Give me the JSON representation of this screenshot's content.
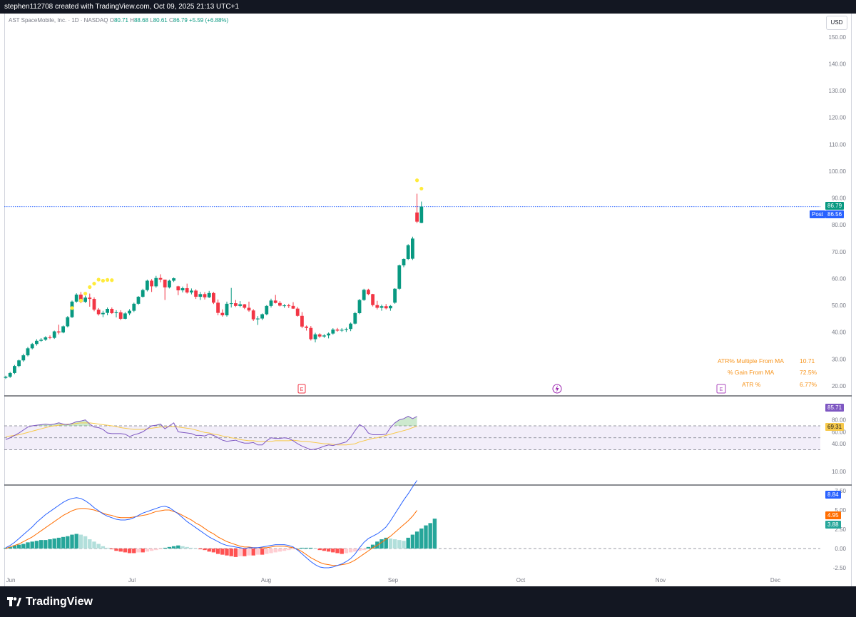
{
  "header": {
    "creator_text": "stephen112708 created with TradingView.com, Oct 09, 2025 21:13 UTC+1"
  },
  "symbol": {
    "name": "AST SpaceMobile, Inc. · 1D · NASDAQ",
    "open_label": "O",
    "open": "80.71",
    "high_label": "H",
    "high": "88.68",
    "low_label": "L",
    "low": "80.61",
    "close_label": "C",
    "close": "86.79",
    "change": "+5.59 (+6.88%)"
  },
  "currency": "USD",
  "price_tags": {
    "last": "86.79",
    "post_label": "Post",
    "post": "86.56",
    "rsi": "85.71",
    "rsi_ma": "69.31",
    "macd": "8.84",
    "signal": "4.95",
    "hist": "3.88"
  },
  "stats": [
    {
      "label": "ATR% Multiple From MA",
      "value": "10.71"
    },
    {
      "label": "% Gain From MA",
      "value": "72.5%"
    },
    {
      "label": "ATR %",
      "value": "6.77%"
    }
  ],
  "event_markers": {
    "earnings": "E",
    "dividend": "E"
  },
  "footer": {
    "brand": "TradingView"
  },
  "colors": {
    "up": "#089981",
    "down": "#f23645",
    "rsi": "#7e57c2",
    "rsi_ma": "#f7c94a",
    "macd": "#2962ff",
    "signal": "#ff6d00",
    "dots": "#ffeb3b",
    "last_price": "#2962ff"
  },
  "chart_data": [
    {
      "type": "candlestick",
      "title": "",
      "x_axis_labels": [
        "Jun",
        "Jul",
        "Aug",
        "Sep",
        "Oct",
        "Nov",
        "Dec"
      ],
      "y_axis_ticks": [
        20,
        30,
        40,
        50,
        60,
        70,
        80,
        90,
        100,
        110,
        120,
        130,
        140,
        150
      ],
      "ylim": [
        17,
        158
      ],
      "ohlc": [
        [
          23.0,
          23.8,
          22.6,
          23.4
        ],
        [
          23.4,
          25.2,
          23.0,
          24.8
        ],
        [
          24.8,
          27.8,
          24.4,
          27.4
        ],
        [
          27.4,
          29.8,
          26.9,
          29.5
        ],
        [
          29.5,
          32.0,
          29.0,
          31.4
        ],
        [
          31.4,
          34.5,
          31.0,
          34.0
        ],
        [
          34.0,
          36.0,
          33.6,
          35.6
        ],
        [
          35.6,
          37.4,
          35.0,
          36.8
        ],
        [
          36.8,
          37.8,
          36.4,
          37.2
        ],
        [
          37.2,
          38.5,
          36.8,
          38.1
        ],
        [
          38.1,
          38.8,
          37.4,
          37.9
        ],
        [
          37.9,
          40.6,
          37.5,
          40.3
        ],
        [
          40.3,
          42.8,
          39.2,
          39.9
        ],
        [
          39.9,
          42.5,
          39.6,
          42.2
        ],
        [
          42.2,
          46.0,
          41.8,
          45.6
        ],
        [
          45.6,
          51.8,
          45.3,
          51.4
        ],
        [
          51.4,
          54.5,
          51.0,
          54.0
        ],
        [
          54.0,
          55.0,
          50.8,
          51.3
        ],
        [
          51.3,
          53.6,
          50.9,
          52.9
        ],
        [
          52.9,
          54.4,
          49.5,
          52.4
        ],
        [
          52.4,
          53.0,
          47.8,
          48.4
        ],
        [
          48.4,
          49.0,
          46.2,
          46.7
        ],
        [
          46.7,
          48.0,
          45.6,
          47.2
        ],
        [
          47.2,
          49.2,
          46.3,
          48.7
        ],
        [
          48.7,
          49.2,
          46.8,
          47.1
        ],
        [
          47.1,
          48.2,
          45.5,
          47.4
        ],
        [
          47.4,
          48.2,
          44.5,
          45.0
        ],
        [
          45.0,
          47.5,
          44.8,
          47.0
        ],
        [
          47.0,
          48.6,
          46.3,
          48.0
        ],
        [
          48.0,
          51.0,
          47.5,
          50.6
        ],
        [
          50.6,
          53.5,
          50.2,
          53.2
        ],
        [
          53.2,
          56.2,
          52.9,
          55.7
        ],
        [
          55.7,
          59.6,
          55.2,
          59.2
        ],
        [
          59.2,
          59.8,
          55.0,
          57.1
        ],
        [
          57.1,
          61.0,
          56.6,
          60.2
        ],
        [
          60.2,
          61.6,
          58.6,
          59.6
        ],
        [
          59.6,
          59.6,
          52.0,
          56.7
        ],
        [
          56.7,
          59.6,
          56.3,
          59.2
        ],
        [
          59.2,
          60.4,
          58.7,
          60.1
        ],
        [
          57.1,
          57.3,
          53.8,
          55.6
        ],
        [
          55.6,
          57.0,
          54.8,
          56.4
        ],
        [
          56.4,
          58.1,
          54.4,
          54.8
        ],
        [
          54.8,
          56.3,
          54.1,
          55.5
        ],
        [
          55.5,
          56.0,
          52.4,
          53.2
        ],
        [
          53.2,
          55.0,
          52.0,
          54.2
        ],
        [
          54.2,
          54.9,
          52.2,
          53.0
        ],
        [
          53.0,
          55.4,
          52.7,
          54.6
        ],
        [
          54.6,
          55.0,
          50.5,
          51.0
        ],
        [
          51.0,
          52.2,
          46.3,
          47.2
        ],
        [
          47.2,
          48.5,
          45.8,
          46.3
        ],
        [
          46.3,
          51.4,
          45.8,
          50.6
        ],
        [
          50.6,
          56.5,
          49.2,
          50.8
        ],
        [
          50.8,
          52.0,
          49.4,
          49.8
        ],
        [
          49.8,
          51.6,
          49.3,
          50.4
        ],
        [
          50.4,
          50.5,
          48.6,
          49.1
        ],
        [
          49.1,
          51.4,
          47.6,
          48.1
        ],
        [
          48.1,
          48.6,
          44.2,
          44.8
        ],
        [
          44.8,
          46.0,
          42.7,
          45.1
        ],
        [
          45.1,
          47.0,
          44.5,
          46.7
        ],
        [
          46.7,
          50.1,
          46.3,
          49.8
        ],
        [
          49.8,
          52.5,
          49.2,
          51.8
        ],
        [
          51.8,
          53.9,
          50.7,
          50.9
        ],
        [
          50.9,
          51.6,
          49.6,
          49.9
        ],
        [
          49.9,
          50.5,
          49.1,
          50.0
        ],
        [
          50.0,
          50.6,
          49.0,
          49.8
        ],
        [
          49.8,
          51.2,
          48.7,
          48.8
        ],
        [
          48.8,
          49.4,
          45.8,
          46.1
        ],
        [
          46.1,
          47.5,
          41.5,
          42.1
        ],
        [
          42.1,
          42.5,
          40.6,
          41.6
        ],
        [
          41.6,
          42.3,
          36.9,
          37.4
        ],
        [
          37.4,
          39.8,
          36.2,
          39.2
        ],
        [
          39.2,
          39.6,
          37.9,
          38.4
        ],
        [
          38.4,
          39.3,
          37.9,
          38.8
        ],
        [
          38.8,
          39.9,
          37.7,
          39.5
        ],
        [
          39.5,
          41.5,
          39.1,
          41.0
        ],
        [
          41.0,
          41.6,
          40.2,
          40.6
        ],
        [
          40.6,
          41.5,
          40.1,
          40.9
        ],
        [
          40.9,
          41.7,
          40.1,
          41.2
        ],
        [
          41.2,
          43.6,
          40.4,
          43.2
        ],
        [
          43.2,
          47.6,
          42.9,
          47.1
        ],
        [
          47.1,
          52.4,
          46.7,
          52.0
        ],
        [
          52.0,
          56.2,
          51.7,
          55.8
        ],
        [
          55.8,
          56.2,
          53.8,
          54.2
        ],
        [
          54.2,
          54.3,
          49.6,
          50.1
        ],
        [
          50.1,
          51.7,
          48.5,
          49.1
        ],
        [
          49.1,
          50.3,
          48.0,
          49.7
        ],
        [
          49.7,
          50.5,
          48.5,
          48.9
        ],
        [
          48.9,
          50.1,
          48.0,
          49.8
        ],
        [
          51.0,
          56.4,
          50.6,
          56.2
        ],
        [
          56.2,
          65.2,
          55.8,
          64.9
        ],
        [
          64.9,
          67.5,
          64.2,
          67.3
        ],
        [
          67.3,
          72.8,
          66.9,
          72.4
        ],
        [
          67.4,
          75.6,
          66.9,
          74.9
        ],
        [
          84.6,
          91.6,
          80.6,
          81.2
        ],
        [
          80.71,
          88.68,
          80.61,
          86.79
        ]
      ],
      "psar_dots": [
        {
          "index": 15,
          "value": 49.0
        },
        {
          "index": 17,
          "value": 51.8
        },
        {
          "index": 18,
          "value": 54.4
        },
        {
          "index": 19,
          "value": 56.8
        },
        {
          "index": 20,
          "value": 58.1
        },
        {
          "index": 21,
          "value": 59.6
        },
        {
          "index": 22,
          "value": 59.2
        },
        {
          "index": 23,
          "value": 59.5
        },
        {
          "index": 24,
          "value": 59.4
        },
        {
          "index": 93,
          "value": 96.6
        },
        {
          "index": 94,
          "value": 93.5
        }
      ],
      "last_price_line": 86.79
    },
    {
      "type": "line",
      "title": "",
      "y_axis_ticks": [
        40,
        60,
        80
      ],
      "ylim": [
        25,
        92
      ],
      "bands": {
        "upper": 70,
        "middle": 50,
        "lower": 30
      },
      "series": [
        {
          "name": "",
          "values": [
            47,
            50,
            54,
            58,
            63,
            68,
            70,
            71,
            72,
            73,
            72,
            73,
            75,
            73,
            72,
            74,
            77,
            78,
            80,
            73,
            68,
            67,
            64,
            58,
            57,
            57,
            57,
            56,
            52,
            55,
            57,
            60,
            65,
            70,
            71,
            73,
            65,
            70,
            75,
            60,
            59,
            58,
            57,
            54,
            54,
            53,
            56,
            54,
            50,
            46,
            44,
            45,
            46,
            43,
            41,
            41,
            42,
            38,
            38,
            45,
            50,
            49,
            49,
            50,
            49,
            45,
            40,
            36,
            33,
            30,
            31,
            33,
            36,
            38,
            37,
            39,
            41,
            43,
            51,
            62,
            72,
            68,
            58,
            55,
            55,
            55,
            56,
            67,
            75,
            80,
            82,
            86,
            82,
            85.71
          ]
        },
        {
          "name": "",
          "values": [
            52,
            53,
            54,
            55,
            57,
            59,
            61,
            63,
            65,
            67,
            69,
            70,
            71,
            72,
            73,
            73,
            74,
            75,
            75,
            75,
            74,
            73,
            72,
            71,
            70,
            69,
            67,
            66,
            65,
            64,
            64,
            64,
            65,
            66,
            67,
            68,
            68,
            69,
            69,
            68,
            67,
            66,
            65,
            63,
            61,
            59,
            58,
            56,
            55,
            53,
            52,
            50,
            49,
            47,
            46,
            45,
            45,
            44,
            44,
            44,
            44,
            45,
            45,
            45,
            45,
            46,
            45,
            44,
            44,
            43,
            42,
            41,
            40,
            40,
            39,
            38,
            38,
            38,
            39,
            40,
            43,
            45,
            47,
            49,
            50,
            52,
            54,
            56,
            58,
            60,
            62,
            64,
            67,
            69.31
          ]
        }
      ]
    },
    {
      "type": "bar",
      "title": "",
      "y_axis_ticks": [
        -2.5,
        0.0,
        2.5,
        5.0,
        7.5,
        10.0
      ],
      "ylim": [
        -3.5,
        10.5
      ],
      "series": [
        {
          "name": "",
          "values": [
            0.1,
            0.2,
            0.4,
            0.5,
            0.6,
            0.8,
            0.9,
            1.0,
            1.1,
            1.1,
            1.2,
            1.3,
            1.4,
            1.5,
            1.6,
            1.8,
            1.9,
            1.8,
            1.6,
            1.2,
            0.9,
            0.6,
            0.3,
            0.1,
            -0.1,
            -0.3,
            -0.4,
            -0.5,
            -0.6,
            -0.6,
            -0.5,
            -0.5,
            -0.4,
            -0.3,
            -0.2,
            -0.1,
            0.1,
            0.2,
            0.3,
            0.4,
            0.3,
            0.2,
            0.1,
            0.0,
            -0.1,
            -0.2,
            -0.4,
            -0.5,
            -0.7,
            -0.8,
            -0.9,
            -1.0,
            -1.1,
            -1.0,
            -1.0,
            -0.9,
            -0.9,
            -0.8,
            -0.8,
            -0.7,
            -0.6,
            -0.5,
            -0.4,
            -0.3,
            -0.2,
            -0.1,
            0.0,
            0.1,
            0.1,
            0.1,
            0.0,
            -0.2,
            -0.3,
            -0.4,
            -0.5,
            -0.6,
            -0.7,
            -0.6,
            -0.5,
            -0.4,
            -0.3,
            -0.2,
            0.2,
            0.5,
            0.9,
            1.2,
            1.4,
            1.3,
            1.2,
            1.1,
            1.0,
            1.4,
            1.8,
            2.2,
            2.6,
            3.0,
            3.3,
            3.88
          ]
        },
        {
          "name": "",
          "values": [
            0.1,
            0.4,
            0.8,
            1.3,
            1.8,
            2.3,
            2.8,
            3.4,
            3.9,
            4.4,
            4.8,
            5.2,
            5.6,
            6.0,
            6.3,
            6.5,
            6.6,
            6.5,
            6.2,
            5.8,
            5.3,
            4.9,
            4.5,
            4.2,
            4.0,
            3.8,
            3.7,
            3.7,
            3.8,
            4.0,
            4.3,
            4.6,
            4.8,
            5.0,
            5.2,
            5.4,
            5.5,
            5.3,
            4.9,
            4.5,
            4.0,
            3.5,
            3.1,
            2.7,
            2.3,
            1.9,
            1.5,
            1.2,
            0.9,
            0.6,
            0.4,
            0.3,
            0.2,
            0.1,
            0.0,
            0.1,
            0.1,
            0.1,
            0.2,
            0.3,
            0.4,
            0.5,
            0.5,
            0.5,
            0.4,
            0.2,
            -0.2,
            -0.7,
            -1.2,
            -1.7,
            -2.1,
            -2.4,
            -2.5,
            -2.5,
            -2.4,
            -2.2,
            -2.0,
            -1.7,
            -1.3,
            -0.7,
            0.1,
            0.8,
            1.3,
            1.6,
            1.9,
            2.3,
            2.8,
            3.6,
            4.5,
            5.4,
            6.3,
            7.1,
            8.0,
            8.84
          ]
        },
        {
          "name": "",
          "values": [
            0.0,
            0.2,
            0.4,
            0.6,
            0.9,
            1.2,
            1.5,
            1.9,
            2.3,
            2.7,
            3.1,
            3.5,
            3.9,
            4.3,
            4.6,
            4.9,
            5.1,
            5.2,
            5.2,
            5.1,
            5.0,
            4.8,
            4.6,
            4.4,
            4.3,
            4.1,
            4.0,
            4.0,
            4.0,
            4.1,
            4.2,
            4.3,
            4.4,
            4.6,
            4.8,
            4.9,
            5.0,
            5.0,
            4.8,
            4.6,
            4.3,
            4.0,
            3.7,
            3.3,
            3.0,
            2.6,
            2.2,
            1.9,
            1.5,
            1.2,
            0.9,
            0.7,
            0.5,
            0.3,
            0.2,
            0.2,
            0.1,
            0.1,
            0.1,
            0.1,
            0.2,
            0.3,
            0.3,
            0.3,
            0.2,
            0.1,
            -0.1,
            -0.4,
            -0.8,
            -1.2,
            -1.5,
            -1.8,
            -2.0,
            -2.1,
            -2.2,
            -2.2,
            -2.1,
            -2.0,
            -1.8,
            -1.5,
            -1.1,
            -0.7,
            -0.3,
            0.1,
            0.4,
            0.8,
            1.2,
            1.6,
            2.1,
            2.6,
            3.1,
            3.6,
            4.2,
            4.95
          ]
        }
      ]
    }
  ]
}
